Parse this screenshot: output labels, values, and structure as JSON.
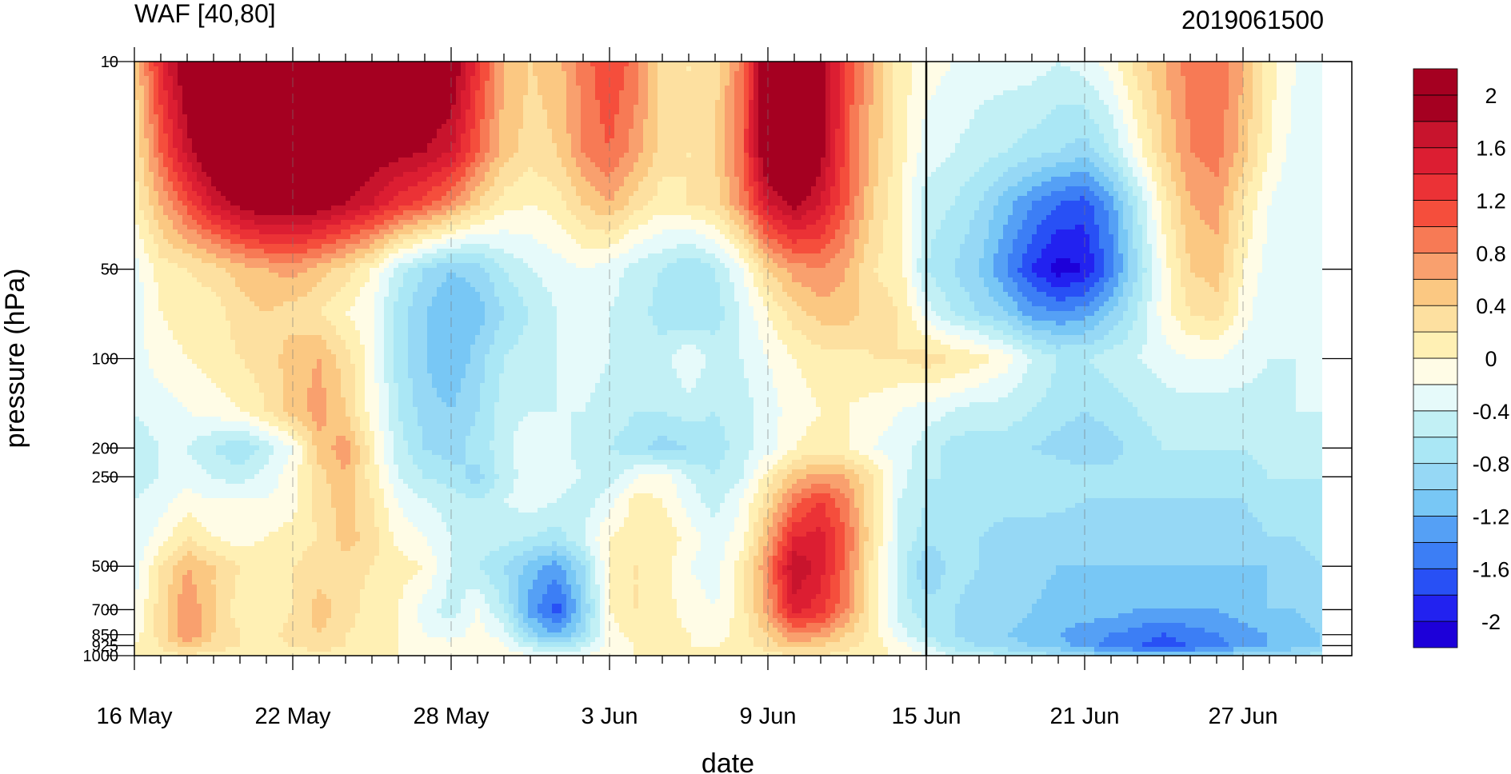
{
  "chart_data": {
    "type": "heatmap",
    "title": "WAF [40,80]",
    "subtitle": "2019061500",
    "xlabel": "date",
    "ylabel": "pressure (hPa)",
    "x_ticks": [
      "16 May",
      "22 May",
      "28 May",
      "3 Jun",
      "9 Jun",
      "15 Jun",
      "21 Jun",
      "27 Jun"
    ],
    "y_ticks": [
      "10",
      "50",
      "100",
      "200",
      "250",
      "500",
      "700",
      "850",
      "925",
      "1000"
    ],
    "x_dates": [
      "2019-05-16",
      "2019-05-17",
      "2019-05-18",
      "2019-05-19",
      "2019-05-20",
      "2019-05-21",
      "2019-05-22",
      "2019-05-23",
      "2019-05-24",
      "2019-05-25",
      "2019-05-26",
      "2019-05-27",
      "2019-05-28",
      "2019-05-29",
      "2019-05-30",
      "2019-05-31",
      "2019-06-01",
      "2019-06-02",
      "2019-06-03",
      "2019-06-04",
      "2019-06-05",
      "2019-06-06",
      "2019-06-07",
      "2019-06-08",
      "2019-06-09",
      "2019-06-10",
      "2019-06-11",
      "2019-06-12",
      "2019-06-13",
      "2019-06-14",
      "2019-06-15",
      "2019-06-16",
      "2019-06-17",
      "2019-06-18",
      "2019-06-19",
      "2019-06-20",
      "2019-06-21",
      "2019-06-22",
      "2019-06-23",
      "2019-06-24",
      "2019-06-25",
      "2019-06-26",
      "2019-06-27",
      "2019-06-28",
      "2019-06-29",
      "2019-06-30"
    ],
    "pressure_levels": [
      10,
      20,
      30,
      50,
      70,
      100,
      150,
      200,
      250,
      300,
      400,
      500,
      700,
      850,
      925,
      1000
    ],
    "values": [
      [
        0.4,
        1.4,
        2.1,
        2.3,
        2.4,
        2.4,
        2.3,
        2.3,
        2.3,
        2.3,
        2.2,
        2.2,
        2.1,
        1.3,
        0.6,
        0.4,
        0.5,
        0.9,
        1.2,
        0.9,
        0.3,
        0.2,
        0.3,
        0.9,
        2.2,
        2.5,
        2.0,
        1.1,
        0.6,
        0.1,
        -0.1,
        -0.2,
        -0.3,
        -0.3,
        -0.3,
        -0.4,
        -0.3,
        -0.1,
        0.3,
        0.6,
        0.9,
        1.0,
        0.6,
        0.1,
        -0.2,
        -0.3
      ],
      [
        0.2,
        1.0,
        1.7,
        2.2,
        2.3,
        2.4,
        2.3,
        2.2,
        2.1,
        2.0,
        1.9,
        1.8,
        1.6,
        1.0,
        0.5,
        0.3,
        0.4,
        0.8,
        1.0,
        0.7,
        0.3,
        0.2,
        0.4,
        1.0,
        2.2,
        2.4,
        1.9,
        1.1,
        0.5,
        0.1,
        -0.3,
        -0.4,
        -0.5,
        -0.6,
        -0.7,
        -0.8,
        -0.9,
        -0.6,
        -0.1,
        0.4,
        0.8,
        0.9,
        0.5,
        0.0,
        -0.3,
        -0.4
      ],
      [
        0.1,
        0.6,
        1.1,
        1.6,
        1.9,
        2.1,
        2.1,
        2.0,
        1.8,
        1.6,
        1.3,
        1.1,
        0.8,
        0.4,
        0.1,
        0.0,
        0.1,
        0.4,
        0.6,
        0.3,
        0.1,
        0.2,
        0.3,
        0.8,
        1.6,
        1.9,
        1.6,
        1.0,
        0.4,
        0.0,
        -0.5,
        -0.6,
        -0.8,
        -1.1,
        -1.4,
        -1.6,
        -1.7,
        -1.3,
        -0.6,
        0.1,
        0.6,
        0.7,
        0.2,
        -0.2,
        -0.4,
        -0.4
      ],
      [
        -0.3,
        0.1,
        0.2,
        0.3,
        0.5,
        0.6,
        0.7,
        0.5,
        0.3,
        0.0,
        -0.5,
        -0.8,
        -1.0,
        -0.9,
        -0.6,
        -0.4,
        -0.3,
        -0.2,
        -0.3,
        -0.5,
        -0.6,
        -0.8,
        -0.6,
        -0.2,
        0.4,
        0.7,
        0.8,
        0.6,
        0.2,
        0.1,
        -0.6,
        -0.8,
        -1.0,
        -1.4,
        -1.8,
        -2.1,
        -2.0,
        -1.5,
        -0.8,
        -0.1,
        0.4,
        0.5,
        0.0,
        -0.3,
        -0.4,
        -0.3
      ],
      [
        -0.3,
        0.0,
        0.1,
        0.1,
        0.3,
        0.4,
        0.3,
        0.2,
        0.0,
        -0.2,
        -0.7,
        -1.0,
        -1.2,
        -1.1,
        -0.8,
        -0.6,
        -0.4,
        -0.3,
        -0.4,
        -0.5,
        -0.7,
        -0.8,
        -0.7,
        -0.4,
        0.0,
        0.3,
        0.5,
        0.5,
        0.3,
        0.2,
        -0.3,
        -0.6,
        -0.8,
        -1.0,
        -1.3,
        -1.4,
        -1.3,
        -1.0,
        -0.6,
        -0.1,
        0.2,
        0.3,
        -0.1,
        -0.4,
        -0.4,
        -0.3
      ],
      [
        -0.3,
        -0.1,
        0.0,
        0.1,
        0.2,
        0.3,
        0.5,
        0.6,
        0.3,
        -0.1,
        -0.7,
        -1.0,
        -1.2,
        -0.9,
        -0.6,
        -0.5,
        -0.4,
        -0.3,
        -0.4,
        -0.5,
        -0.5,
        -0.2,
        -0.5,
        -0.4,
        -0.2,
        0.0,
        0.1,
        0.1,
        0.2,
        0.2,
        0.3,
        0.2,
        0.1,
        -0.1,
        -0.4,
        -0.6,
        -0.6,
        -0.5,
        -0.4,
        -0.3,
        -0.2,
        -0.2,
        -0.3,
        -0.4,
        -0.4,
        -0.3
      ],
      [
        -0.4,
        -0.3,
        -0.2,
        -0.1,
        0.0,
        0.2,
        0.5,
        0.7,
        0.4,
        -0.1,
        -0.6,
        -0.9,
        -1.0,
        -0.8,
        -0.5,
        -0.4,
        -0.4,
        -0.4,
        -0.5,
        -0.6,
        -0.6,
        -0.5,
        -0.6,
        -0.5,
        -0.3,
        -0.1,
        0.0,
        0.0,
        -0.1,
        -0.2,
        -0.3,
        -0.4,
        -0.5,
        -0.5,
        -0.6,
        -0.7,
        -0.8,
        -0.7,
        -0.6,
        -0.5,
        -0.5,
        -0.5,
        -0.5,
        -0.5,
        -0.4,
        -0.4
      ],
      [
        -0.5,
        -0.4,
        -0.4,
        -0.6,
        -0.8,
        -0.5,
        -0.2,
        0.5,
        0.7,
        0.1,
        -0.5,
        -0.8,
        -0.9,
        -0.7,
        -0.5,
        -0.2,
        -0.3,
        -0.5,
        -0.6,
        -0.7,
        -0.9,
        -0.8,
        -0.7,
        -0.5,
        -0.3,
        0.0,
        0.1,
        0.0,
        -0.2,
        -0.3,
        -0.5,
        -0.7,
        -0.7,
        -0.7,
        -0.8,
        -0.9,
        -1.0,
        -0.9,
        -0.7,
        -0.6,
        -0.6,
        -0.6,
        -0.6,
        -0.5,
        -0.5,
        -0.5
      ],
      [
        -0.5,
        -0.4,
        -0.3,
        -0.4,
        -0.5,
        -0.3,
        -0.1,
        0.3,
        0.6,
        0.1,
        -0.4,
        -0.6,
        -0.7,
        -0.9,
        -0.5,
        -0.3,
        -0.3,
        -0.4,
        -0.5,
        -0.2,
        -0.1,
        -0.4,
        -0.6,
        -0.4,
        0.1,
        0.5,
        0.7,
        0.6,
        0.2,
        -0.3,
        -0.6,
        -0.6,
        -0.6,
        -0.6,
        -0.6,
        -0.6,
        -0.7,
        -0.7,
        -0.7,
        -0.7,
        -0.7,
        -0.7,
        -0.7,
        -0.6,
        -0.6,
        -0.6
      ],
      [
        -0.4,
        -0.3,
        -0.1,
        -0.2,
        -0.2,
        -0.2,
        -0.1,
        0.3,
        0.5,
        0.2,
        -0.2,
        -0.4,
        -0.5,
        -0.6,
        -0.4,
        -0.3,
        -0.4,
        -0.5,
        -0.3,
        0.1,
        0.0,
        -0.3,
        -0.5,
        -0.2,
        0.3,
        0.9,
        1.2,
        0.8,
        0.2,
        -0.4,
        -0.6,
        -0.7,
        -0.7,
        -0.7,
        -0.7,
        -0.7,
        -0.8,
        -0.8,
        -0.8,
        -0.8,
        -0.8,
        -0.8,
        -0.8,
        -0.7,
        -0.7,
        -0.7
      ],
      [
        -0.4,
        -0.1,
        0.2,
        0.0,
        -0.1,
        0.0,
        0.1,
        0.2,
        0.5,
        0.3,
        -0.1,
        -0.2,
        -0.4,
        -0.5,
        -0.5,
        -0.6,
        -0.7,
        -0.4,
        0.0,
        0.1,
        0.2,
        -0.1,
        -0.3,
        -0.1,
        0.6,
        1.4,
        1.5,
        1.0,
        0.2,
        -0.4,
        -0.7,
        -0.8,
        -0.8,
        -0.9,
        -0.9,
        -1.0,
        -1.0,
        -1.0,
        -0.9,
        -0.9,
        -0.9,
        -0.9,
        -0.9,
        -0.8,
        -0.8,
        -0.7
      ],
      [
        -0.3,
        0.2,
        0.6,
        0.4,
        0.2,
        0.1,
        0.2,
        0.3,
        0.3,
        0.2,
        0.1,
        0.0,
        -0.4,
        -0.6,
        -0.8,
        -1.1,
        -1.3,
        -0.8,
        0.0,
        0.2,
        0.1,
        -0.2,
        -0.3,
        0.1,
        0.8,
        1.8,
        1.5,
        0.9,
        0.1,
        -0.5,
        -1.0,
        -0.7,
        -0.8,
        -0.8,
        -0.9,
        -1.0,
        -1.0,
        -1.0,
        -1.0,
        -1.0,
        -1.0,
        -1.0,
        -1.0,
        -1.0,
        -0.9,
        -0.8
      ],
      [
        -0.2,
        0.3,
        0.8,
        0.4,
        0.1,
        0.0,
        0.2,
        0.5,
        0.3,
        0.1,
        0.0,
        -0.3,
        -0.5,
        -0.2,
        -0.6,
        -1.3,
        -1.7,
        -1.0,
        0.0,
        0.2,
        0.1,
        -0.1,
        -0.2,
        0.1,
        0.7,
        1.5,
        1.3,
        0.8,
        0.1,
        -0.5,
        -0.7,
        -0.8,
        -0.9,
        -0.9,
        -1.0,
        -1.1,
        -1.1,
        -1.1,
        -1.2,
        -1.2,
        -1.2,
        -1.2,
        -1.1,
        -1.0,
        -1.0,
        -0.9
      ],
      [
        -0.1,
        0.3,
        0.8,
        0.4,
        0.2,
        0.1,
        0.3,
        0.4,
        0.2,
        0.1,
        0.0,
        -0.2,
        -0.3,
        -0.1,
        -0.3,
        -0.9,
        -1.2,
        -0.8,
        -0.1,
        0.1,
        0.1,
        0.0,
        -0.1,
        0.1,
        0.4,
        0.8,
        0.7,
        0.4,
        0.1,
        -0.3,
        -0.6,
        -0.8,
        -0.9,
        -1.0,
        -1.1,
        -1.2,
        -1.3,
        -1.4,
        -1.5,
        -1.6,
        -1.5,
        -1.4,
        -1.3,
        -1.2,
        -1.1,
        -1.0
      ],
      [
        0.0,
        0.2,
        0.5,
        0.3,
        0.2,
        0.1,
        0.2,
        0.3,
        0.2,
        0.1,
        0.0,
        -0.1,
        -0.1,
        0.0,
        -0.2,
        -0.5,
        -0.7,
        -0.5,
        -0.1,
        0.0,
        0.0,
        0.0,
        0.0,
        0.1,
        0.3,
        0.5,
        0.4,
        0.3,
        0.1,
        -0.1,
        -0.4,
        -0.7,
        -0.8,
        -0.9,
        -1.0,
        -1.1,
        -1.3,
        -1.5,
        -1.6,
        -1.7,
        -1.6,
        -1.5,
        -1.3,
        -1.2,
        -1.1,
        -1.0
      ],
      [
        0.0,
        0.1,
        0.2,
        0.1,
        0.1,
        0.0,
        0.1,
        0.1,
        0.1,
        0.0,
        0.0,
        0.0,
        0.0,
        0.0,
        -0.1,
        -0.2,
        -0.3,
        -0.2,
        0.0,
        0.0,
        0.0,
        0.0,
        0.0,
        0.0,
        0.1,
        0.2,
        0.2,
        0.1,
        0.0,
        0.0,
        -0.2,
        -0.4,
        -0.5,
        -0.6,
        -0.7,
        -0.8,
        -0.9,
        -1.0,
        -1.1,
        -1.1,
        -1.1,
        -1.0,
        -0.9,
        -0.8,
        -0.8,
        -0.7
      ]
    ],
    "colorbar": {
      "levels": [
        -2.2,
        -2.0,
        -1.8,
        -1.6,
        -1.4,
        -1.2,
        -1.0,
        -0.8,
        -0.6,
        -0.4,
        -0.2,
        0.0,
        0.2,
        0.4,
        0.6,
        0.8,
        1.0,
        1.2,
        1.4,
        1.6,
        1.8,
        2.0,
        2.2
      ],
      "labels": [
        "2",
        "1.6",
        "1.2",
        "0.8",
        "0.4",
        "0",
        "-0.4",
        "-0.8",
        "-1.2",
        "-1.6",
        "-2"
      ],
      "colors": [
        "#1d00d9",
        "#2222f0",
        "#2850f5",
        "#3c7ef5",
        "#55a0f5",
        "#78c7f5",
        "#96d8f5",
        "#aae7f5",
        "#c2f0f5",
        "#e6fafa",
        "#fffce6",
        "#fff0b4",
        "#fde0a0",
        "#fbc882",
        "#f9a06e",
        "#f77a55",
        "#f54e3c",
        "#eb3236",
        "#dc1e32",
        "#c8142d",
        "#a50021",
        "#a50021"
      ]
    },
    "vertical_line_date": "15 Jun",
    "grid": "dashed vertical at x ticks",
    "legend": "colorbar right"
  }
}
